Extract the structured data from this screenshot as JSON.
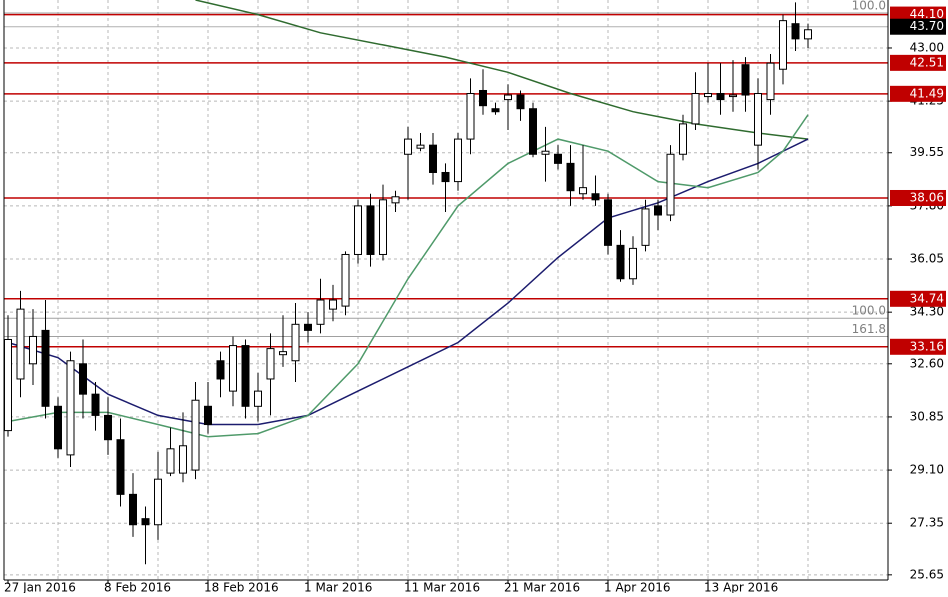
{
  "chart_data": {
    "type": "candlestick",
    "categories": [
      "27 Jan 2016",
      null,
      null,
      null,
      null,
      null,
      null,
      null,
      "8 Feb 2016",
      null,
      null,
      null,
      null,
      null,
      null,
      null,
      "18 Feb 2016",
      null,
      null,
      null,
      null,
      null,
      null,
      null,
      "1 Mar 2016",
      null,
      null,
      null,
      null,
      null,
      null,
      null,
      "11 Mar 2016",
      null,
      null,
      null,
      null,
      null,
      null,
      null,
      "21 Mar 2016",
      null,
      null,
      null,
      null,
      null,
      null,
      null,
      "1 Apr 2016",
      null,
      null,
      null,
      null,
      null,
      null,
      null,
      "13 Apr 2016",
      null,
      null,
      null,
      null,
      null,
      null,
      null,
      null
    ],
    "open": [
      30.4,
      32.1,
      32.6,
      33.7,
      31.2,
      29.6,
      32.6,
      31.6,
      30.9,
      30.1,
      28.3,
      27.5,
      27.3,
      29.0,
      29.0,
      29.1,
      31.2,
      32.7,
      31.7,
      33.2,
      31.2,
      32.1,
      32.9,
      32.7,
      33.9,
      33.9,
      34.4,
      34.5,
      36.2,
      37.8,
      36.2,
      37.9,
      39.5,
      39.7,
      39.8,
      38.9,
      38.6,
      40.0,
      41.6,
      41.0,
      41.3,
      41.45,
      41.0,
      39.5,
      39.5,
      39.2,
      38.2,
      38.2,
      38.0,
      36.5,
      35.4,
      36.5,
      37.8,
      37.5,
      39.5,
      40.5,
      41.4,
      41.5,
      41.4,
      42.45,
      39.8,
      41.3,
      42.3,
      43.8,
      43.3
    ],
    "high": [
      34.2,
      35.0,
      34.4,
      34.7,
      31.5,
      33.0,
      33.4,
      32.0,
      31.5,
      30.8,
      29.0,
      27.9,
      29.7,
      30.5,
      31.0,
      32.0,
      32.0,
      33.0,
      33.5,
      33.4,
      32.3,
      33.6,
      34.2,
      34.6,
      34.3,
      35.4,
      35.2,
      36.3,
      38.0,
      38.2,
      38.5,
      38.3,
      40.4,
      40.2,
      40.2,
      39.2,
      40.2,
      42.0,
      42.3,
      41.2,
      41.8,
      41.6,
      41.2,
      40.4,
      39.8,
      39.8,
      39.8,
      38.8,
      38.2,
      37.0,
      36.8,
      38.0,
      38.0,
      39.8,
      40.8,
      42.2,
      42.5,
      42.5,
      42.6,
      42.7,
      42.0,
      42.8,
      44.1,
      44.5,
      43.8
    ],
    "low": [
      30.2,
      31.5,
      31.9,
      30.8,
      29.5,
      29.2,
      30.8,
      30.4,
      29.6,
      27.9,
      26.9,
      26.0,
      26.8,
      28.9,
      28.7,
      28.8,
      30.3,
      31.5,
      31.2,
      30.8,
      30.7,
      30.9,
      32.5,
      32.0,
      33.3,
      33.6,
      34.0,
      34.2,
      35.9,
      35.8,
      36.0,
      37.6,
      38.0,
      39.6,
      38.5,
      37.6,
      38.3,
      39.5,
      40.8,
      40.8,
      40.3,
      40.6,
      39.4,
      38.6,
      39.0,
      37.8,
      38.0,
      37.8,
      36.2,
      35.3,
      35.2,
      36.3,
      37.0,
      37.3,
      39.3,
      40.3,
      41.2,
      40.8,
      40.9,
      40.9,
      39.0,
      40.8,
      41.8,
      42.9,
      43.0
    ],
    "close": [
      33.4,
      34.4,
      33.5,
      31.2,
      29.8,
      32.7,
      31.6,
      30.9,
      30.1,
      28.3,
      27.3,
      27.3,
      28.8,
      29.8,
      29.9,
      31.4,
      30.6,
      32.1,
      33.2,
      31.2,
      31.7,
      33.1,
      33.0,
      33.9,
      33.7,
      34.7,
      34.7,
      36.2,
      37.8,
      36.2,
      38.0,
      38.1,
      40.0,
      39.8,
      38.9,
      38.6,
      40.0,
      41.5,
      41.1,
      40.9,
      41.45,
      41.0,
      39.5,
      39.6,
      39.2,
      38.3,
      38.4,
      38.0,
      36.5,
      35.4,
      36.4,
      37.7,
      37.5,
      39.5,
      40.5,
      41.5,
      41.5,
      41.3,
      41.45,
      41.45,
      41.5,
      42.5,
      43.9,
      43.3,
      43.6
    ],
    "up_color": "#ffffff",
    "down_color": "#000000",
    "outline_color": "#000000",
    "lines": [
      {
        "color": "#2f6b2f",
        "x": [
          15,
          20,
          25,
          30,
          35,
          40,
          45,
          50,
          55,
          60,
          64
        ],
        "values": [
          44.58,
          44.1,
          43.5,
          43.1,
          42.7,
          42.2,
          41.5,
          40.9,
          40.5,
          40.2,
          40.0
        ]
      },
      {
        "color": "#1c1c6e",
        "x": [
          0,
          4,
          8,
          12,
          16,
          20,
          24,
          28,
          32,
          36,
          40,
          44,
          48,
          52,
          56,
          60,
          64
        ],
        "values": [
          33.3,
          32.8,
          31.6,
          30.9,
          30.6,
          30.6,
          30.9,
          31.7,
          32.5,
          33.3,
          34.6,
          36.1,
          37.4,
          37.9,
          38.6,
          39.2,
          40.0
        ]
      },
      {
        "color": "#4f9a6a",
        "x": [
          0,
          4,
          8,
          12,
          16,
          20,
          24,
          28,
          32,
          36,
          40,
          44,
          48,
          52,
          56,
          60,
          62,
          64
        ],
        "values": [
          30.7,
          31.0,
          31.0,
          30.6,
          30.2,
          30.3,
          30.9,
          32.6,
          35.4,
          37.8,
          39.2,
          40.0,
          39.6,
          38.6,
          38.4,
          38.9,
          39.6,
          40.8
        ]
      }
    ],
    "levels": [
      {
        "value": 44.1,
        "label": "44.10",
        "color": "#c00000"
      },
      {
        "value": 42.51,
        "label": "42.51",
        "color": "#c00000"
      },
      {
        "value": 41.49,
        "label": "41.49",
        "color": "#c00000"
      },
      {
        "value": 38.06,
        "label": "38.06",
        "color": "#c00000"
      },
      {
        "value": 34.74,
        "label": "34.74",
        "color": "#c00000"
      },
      {
        "value": 33.16,
        "label": "33.16",
        "color": "#c00000"
      }
    ],
    "current_price": {
      "value": 43.7,
      "label": "43.70",
      "color": "#000000"
    },
    "fib_levels": [
      {
        "value": 44.15,
        "label": "100.0"
      },
      {
        "value": 34.1,
        "label": "100.0"
      },
      {
        "value": 33.5,
        "label": "161.8"
      }
    ],
    "ylim": [
      25.48,
      44.58
    ],
    "yticks": [
      25.65,
      27.35,
      {
        "value": 29.1,
        "label": "29.10"
      },
      30.85,
      {
        "value": 32.6,
        "label": "32.60"
      },
      {
        "value": 34.3,
        "label": "34.30"
      },
      36.05,
      {
        "value": 37.8,
        "label": "37.80"
      },
      39.55,
      41.25,
      {
        "value": 43,
        "label": "43.00"
      }
    ],
    "grid": true
  }
}
